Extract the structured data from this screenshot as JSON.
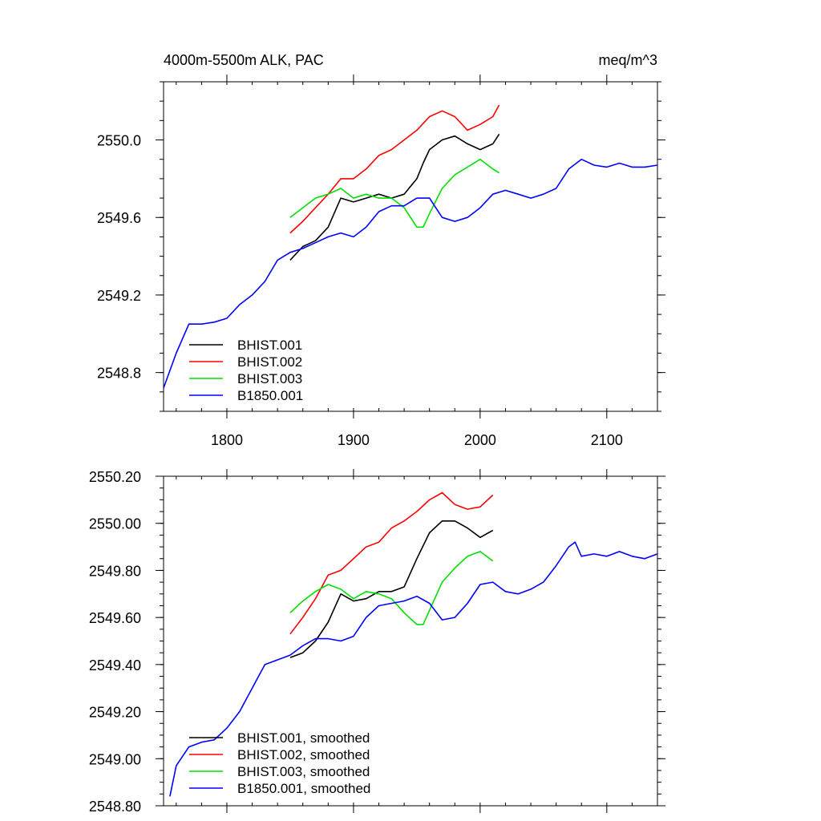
{
  "figure": {
    "title_left": "4000m-5500m ALK, PAC",
    "title_right": "meq/m^3"
  },
  "colors": {
    "BHIST.001": "#000000",
    "BHIST.002": "#ff0000",
    "BHIST.003": "#00e000",
    "B1850.001": "#0000ff"
  },
  "chart_data": [
    {
      "type": "line",
      "panel": "top",
      "title": "4000m-5500m ALK, PAC",
      "units": "meq/m^3",
      "xlim": [
        1750,
        2140
      ],
      "ylim": [
        2548.6,
        2550.3
      ],
      "xticks": [
        1800,
        1900,
        2000,
        2100
      ],
      "xtick_labels": [
        "1800",
        "1900",
        "2000",
        "2100"
      ],
      "yticks": [
        2548.8,
        2549.2,
        2549.6,
        2550.0
      ],
      "ytick_labels": [
        "2548.8",
        "2549.2",
        "2549.6",
        "2550.0"
      ],
      "legend_position": "lower-left",
      "series": [
        {
          "name": "BHIST.001",
          "color": "#000000",
          "x": [
            1850,
            1860,
            1870,
            1880,
            1890,
            1900,
            1910,
            1920,
            1930,
            1940,
            1950,
            1955,
            1960,
            1970,
            1980,
            1990,
            2000,
            2010,
            2015
          ],
          "y": [
            2549.38,
            2549.45,
            2549.48,
            2549.55,
            2549.7,
            2549.68,
            2549.7,
            2549.72,
            2549.7,
            2549.72,
            2549.8,
            2549.88,
            2549.95,
            2550.0,
            2550.02,
            2549.98,
            2549.95,
            2549.98,
            2550.03
          ]
        },
        {
          "name": "BHIST.002",
          "color": "#ff0000",
          "x": [
            1850,
            1860,
            1870,
            1880,
            1890,
            1900,
            1910,
            1920,
            1930,
            1940,
            1950,
            1960,
            1970,
            1980,
            1990,
            2000,
            2010,
            2015
          ],
          "y": [
            2549.52,
            2549.58,
            2549.65,
            2549.72,
            2549.8,
            2549.8,
            2549.85,
            2549.92,
            2549.95,
            2550.0,
            2550.05,
            2550.12,
            2550.15,
            2550.12,
            2550.05,
            2550.08,
            2550.12,
            2550.18
          ]
        },
        {
          "name": "BHIST.003",
          "color": "#00e000",
          "x": [
            1850,
            1860,
            1870,
            1880,
            1890,
            1900,
            1910,
            1920,
            1930,
            1940,
            1950,
            1955,
            1960,
            1970,
            1980,
            1990,
            2000,
            2010,
            2015
          ],
          "y": [
            2549.6,
            2549.65,
            2549.7,
            2549.72,
            2549.75,
            2549.7,
            2549.72,
            2549.7,
            2549.7,
            2549.65,
            2549.55,
            2549.55,
            2549.62,
            2549.75,
            2549.82,
            2549.86,
            2549.9,
            2549.85,
            2549.83
          ]
        },
        {
          "name": "B1850.001",
          "color": "#0000ff",
          "x": [
            1750,
            1760,
            1770,
            1780,
            1790,
            1800,
            1810,
            1820,
            1830,
            1840,
            1850,
            1860,
            1870,
            1880,
            1890,
            1900,
            1910,
            1920,
            1930,
            1940,
            1950,
            1960,
            1970,
            1980,
            1990,
            2000,
            2010,
            2020,
            2030,
            2040,
            2050,
            2060,
            2070,
            2080,
            2090,
            2100,
            2110,
            2120,
            2130,
            2140
          ],
          "y": [
            2548.72,
            2548.9,
            2549.05,
            2549.05,
            2549.06,
            2549.08,
            2549.15,
            2549.2,
            2549.27,
            2549.38,
            2549.42,
            2549.44,
            2549.47,
            2549.5,
            2549.52,
            2549.5,
            2549.55,
            2549.63,
            2549.66,
            2549.66,
            2549.7,
            2549.7,
            2549.6,
            2549.58,
            2549.6,
            2549.65,
            2549.72,
            2549.74,
            2549.72,
            2549.7,
            2549.72,
            2549.75,
            2549.85,
            2549.9,
            2549.87,
            2549.86,
            2549.88,
            2549.86,
            2549.86,
            2549.87
          ]
        }
      ],
      "legend": [
        "BHIST.001",
        "BHIST.002",
        "BHIST.003",
        "B1850.001"
      ]
    },
    {
      "type": "line",
      "panel": "bottom",
      "xlim": [
        1750,
        2140
      ],
      "ylim": [
        2548.8,
        2550.2
      ],
      "xticks": [
        1800,
        1900,
        2000,
        2100
      ],
      "yticks": [
        2548.8,
        2549.0,
        2549.2,
        2549.4,
        2549.6,
        2549.8,
        2550.0,
        2550.2
      ],
      "ytick_labels": [
        "2548.80",
        "2549.00",
        "2549.20",
        "2549.40",
        "2549.60",
        "2549.80",
        "2550.00",
        "2550.20"
      ],
      "legend_position": "lower-left",
      "series": [
        {
          "name": "BHIST.001, smoothed",
          "color": "#000000",
          "x": [
            1850,
            1860,
            1870,
            1880,
            1890,
            1900,
            1910,
            1920,
            1930,
            1940,
            1950,
            1960,
            1970,
            1980,
            1990,
            2000,
            2010
          ],
          "y": [
            2549.43,
            2549.45,
            2549.5,
            2549.58,
            2549.7,
            2549.67,
            2549.68,
            2549.71,
            2549.71,
            2549.73,
            2549.85,
            2549.96,
            2550.01,
            2550.01,
            2549.98,
            2549.94,
            2549.97
          ]
        },
        {
          "name": "BHIST.002, smoothed",
          "color": "#ff0000",
          "x": [
            1850,
            1860,
            1870,
            1880,
            1890,
            1900,
            1910,
            1920,
            1930,
            1940,
            1950,
            1960,
            1970,
            1980,
            1990,
            2000,
            2010
          ],
          "y": [
            2549.53,
            2549.6,
            2549.68,
            2549.78,
            2549.8,
            2549.85,
            2549.9,
            2549.92,
            2549.98,
            2550.01,
            2550.05,
            2550.1,
            2550.13,
            2550.08,
            2550.06,
            2550.07,
            2550.12
          ]
        },
        {
          "name": "BHIST.003, smoothed",
          "color": "#00e000",
          "x": [
            1850,
            1860,
            1870,
            1880,
            1890,
            1900,
            1910,
            1920,
            1930,
            1940,
            1950,
            1955,
            1960,
            1970,
            1980,
            1990,
            2000,
            2010
          ],
          "y": [
            2549.62,
            2549.67,
            2549.71,
            2549.74,
            2549.72,
            2549.68,
            2549.71,
            2549.7,
            2549.68,
            2549.62,
            2549.57,
            2549.57,
            2549.63,
            2549.75,
            2549.81,
            2549.86,
            2549.88,
            2549.84
          ]
        },
        {
          "name": "B1850.001, smoothed",
          "color": "#0000ff",
          "x": [
            1755,
            1760,
            1770,
            1780,
            1790,
            1800,
            1810,
            1820,
            1830,
            1840,
            1850,
            1860,
            1870,
            1880,
            1890,
            1900,
            1910,
            1920,
            1930,
            1940,
            1950,
            1960,
            1970,
            1980,
            1990,
            2000,
            2010,
            2020,
            2030,
            2040,
            2050,
            2060,
            2070,
            2075,
            2080,
            2090,
            2100,
            2110,
            2120,
            2130,
            2140
          ],
          "y": [
            2548.84,
            2548.97,
            2549.05,
            2549.07,
            2549.08,
            2549.13,
            2549.2,
            2549.3,
            2549.4,
            2549.42,
            2549.44,
            2549.48,
            2549.51,
            2549.51,
            2549.5,
            2549.52,
            2549.6,
            2549.65,
            2549.66,
            2549.67,
            2549.69,
            2549.66,
            2549.59,
            2549.6,
            2549.66,
            2549.74,
            2549.75,
            2549.71,
            2549.7,
            2549.72,
            2549.75,
            2549.82,
            2549.9,
            2549.92,
            2549.86,
            2549.87,
            2549.86,
            2549.88,
            2549.86,
            2549.85,
            2549.87
          ]
        }
      ],
      "legend": [
        "BHIST.001, smoothed",
        "BHIST.002, smoothed",
        "BHIST.003, smoothed",
        "B1850.001, smoothed"
      ]
    }
  ]
}
